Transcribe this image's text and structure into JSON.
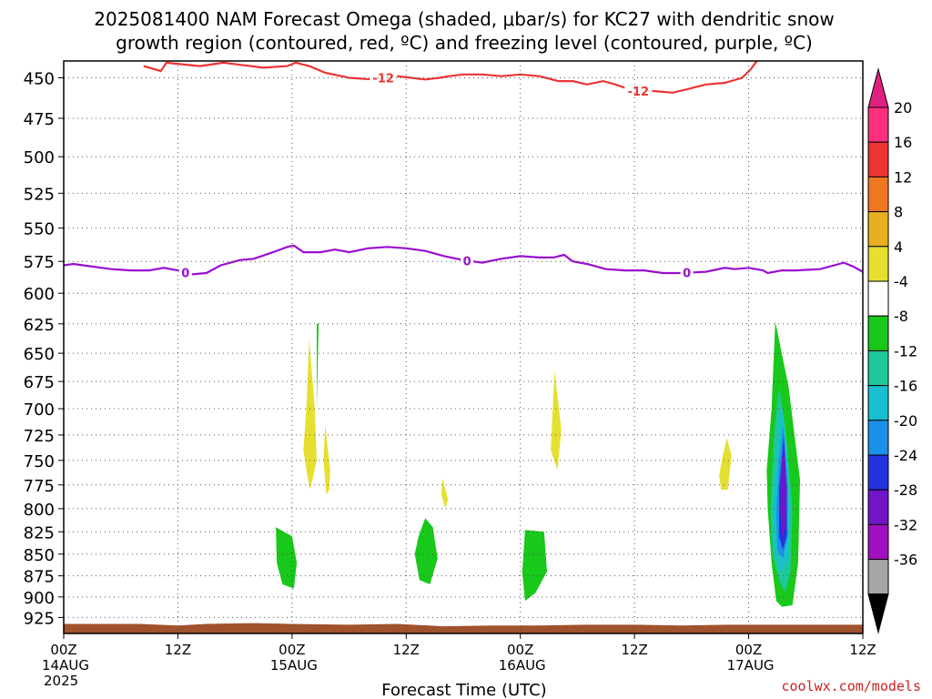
{
  "chart_data": {
    "type": "contour",
    "title_line1": "2025081400 NAM Forecast Omega (shaded, μbar/s) for KC27 with dendritic snow",
    "title_line2": "growth region (contoured, red, ºC) and freezing level (contoured, purple, ºC)",
    "xlabel": "Forecast Time (UTC)",
    "watermark": "coolwx.com/models",
    "x_ticks": [
      {
        "hour": 0,
        "line1": "00Z",
        "line2": "14AUG",
        "line3": "2025"
      },
      {
        "hour": 12,
        "line1": "12Z",
        "line2": "",
        "line3": ""
      },
      {
        "hour": 24,
        "line1": "00Z",
        "line2": "15AUG",
        "line3": ""
      },
      {
        "hour": 36,
        "line1": "12Z",
        "line2": "",
        "line3": ""
      },
      {
        "hour": 48,
        "line1": "00Z",
        "line2": "16AUG",
        "line3": ""
      },
      {
        "hour": 60,
        "line1": "12Z",
        "line2": "",
        "line3": ""
      },
      {
        "hour": 72,
        "line1": "00Z",
        "line2": "17AUG",
        "line3": ""
      },
      {
        "hour": 84,
        "line1": "12Z",
        "line2": "",
        "line3": ""
      }
    ],
    "xlim_hours": [
      0,
      84
    ],
    "y_levels_hPa": [
      450,
      475,
      500,
      525,
      550,
      575,
      600,
      625,
      650,
      675,
      700,
      725,
      750,
      775,
      800,
      825,
      850,
      875,
      900,
      925
    ],
    "ylim_hPa": [
      440,
      945
    ],
    "y_scale": "log-pressure",
    "grid": true,
    "colorbar": {
      "labels": [
        "20",
        "16",
        "12",
        "8",
        "4",
        "-4",
        "-8",
        "-12",
        "-16",
        "-20",
        "-24",
        "-28",
        "-32",
        "-36"
      ],
      "colors": [
        "#ff2f7f",
        "#ee3333",
        "#ee7722",
        "#e8b020",
        "#e5e030",
        "#ffffff",
        "#18c81a",
        "#1ec89a",
        "#18bfcf",
        "#1b91ea",
        "#2233dd",
        "#7016c8",
        "#a010c0",
        "#a6a6a6"
      ],
      "top_arrow_color": "#e0207e",
      "bottom_arrow_color": "#000000"
    },
    "dgz_contour": {
      "label": "-12",
      "color": "#ee3333",
      "points_hPa": [
        [
          8.4,
          443
        ],
        [
          9.0,
          444
        ],
        [
          10.2,
          446
        ],
        [
          10.8,
          441
        ],
        [
          14.3,
          443
        ],
        [
          16.8,
          441
        ],
        [
          21.0,
          444
        ],
        [
          23.5,
          443
        ],
        [
          24.4,
          441
        ],
        [
          25.8,
          443
        ],
        [
          27.5,
          447
        ],
        [
          30.0,
          450
        ],
        [
          32.5,
          451
        ],
        [
          35.0,
          449
        ],
        [
          36.5,
          450
        ],
        [
          38.0,
          451
        ],
        [
          39.5,
          450
        ],
        [
          40.5,
          449
        ],
        [
          42.0,
          448
        ],
        [
          44.0,
          448
        ],
        [
          46.0,
          449
        ],
        [
          48.0,
          448
        ],
        [
          50.0,
          449
        ],
        [
          52.0,
          452
        ],
        [
          53.5,
          452
        ],
        [
          55.0,
          454
        ],
        [
          56.7,
          452
        ],
        [
          58.0,
          454
        ],
        [
          60.0,
          458
        ],
        [
          62.0,
          458
        ],
        [
          64.0,
          459
        ],
        [
          65.5,
          457
        ],
        [
          67.5,
          454
        ],
        [
          69.5,
          453
        ],
        [
          71.3,
          450
        ],
        [
          72.2,
          445
        ],
        [
          73.0,
          439
        ]
      ],
      "label_positions_hours": [
        33.6,
        60.4
      ]
    },
    "freezing_contour": {
      "label": "0",
      "color": "#9a0ed0",
      "points_hPa": [
        [
          0,
          578
        ],
        [
          1.0,
          577
        ],
        [
          3.0,
          579
        ],
        [
          5.0,
          581
        ],
        [
          7.0,
          582
        ],
        [
          9.0,
          582
        ],
        [
          10.5,
          580
        ],
        [
          12.0,
          582
        ],
        [
          13.5,
          585
        ],
        [
          15.0,
          584
        ],
        [
          16.5,
          578
        ],
        [
          18.5,
          574
        ],
        [
          20.0,
          573
        ],
        [
          22.0,
          568
        ],
        [
          23.5,
          564
        ],
        [
          24.2,
          563
        ],
        [
          25.2,
          568
        ],
        [
          27.0,
          568
        ],
        [
          28.5,
          566
        ],
        [
          30.0,
          568
        ],
        [
          32.0,
          565
        ],
        [
          34.0,
          564
        ],
        [
          36.0,
          565
        ],
        [
          38.0,
          567
        ],
        [
          40.0,
          571
        ],
        [
          42.0,
          574
        ],
        [
          44.0,
          576
        ],
        [
          46.0,
          573
        ],
        [
          48.0,
          571
        ],
        [
          50.0,
          572
        ],
        [
          51.5,
          572
        ],
        [
          52.6,
          570
        ],
        [
          53.5,
          575
        ],
        [
          55.0,
          577
        ],
        [
          57.0,
          581
        ],
        [
          59.0,
          582
        ],
        [
          61.0,
          582
        ],
        [
          63.0,
          584
        ],
        [
          65.0,
          584
        ],
        [
          67.5,
          583
        ],
        [
          69.5,
          580
        ],
        [
          70.5,
          581
        ],
        [
          72.0,
          580
        ],
        [
          73.5,
          582
        ],
        [
          74.0,
          584
        ],
        [
          75.5,
          582
        ],
        [
          77.0,
          582
        ],
        [
          79.5,
          581
        ],
        [
          81.0,
          578
        ],
        [
          82.0,
          576
        ],
        [
          83.0,
          579
        ],
        [
          84.0,
          583
        ]
      ],
      "label_positions_hours": [
        12.8,
        42.4,
        65.5
      ]
    },
    "omega_regions": [
      {
        "value": "4",
        "color": "#e5e030",
        "hours": [
          25.8,
          26.4,
          26.6,
          25.9,
          25.6,
          25.2,
          25.5,
          25.8
        ],
        "hPa": [
          638,
          700,
          750,
          780,
          765,
          740,
          700,
          638
        ]
      },
      {
        "value": "4",
        "color": "#e5e030",
        "hours": [
          27.5,
          28.0,
          27.9,
          27.6,
          27.3,
          27.5
        ],
        "hPa": [
          715,
          760,
          780,
          785,
          750,
          715
        ]
      },
      {
        "value": "-8",
        "color": "#18c81a",
        "hours": [
          26.6,
          26.8,
          26.6,
          26.6
        ],
        "hPa": [
          625,
          625,
          700,
          625
        ]
      },
      {
        "value": "4",
        "color": "#e5e030",
        "hours": [
          39.8,
          40.4,
          40.1,
          39.7,
          39.8
        ],
        "hPa": [
          768,
          790,
          800,
          785,
          768
        ]
      },
      {
        "value": "4",
        "color": "#e5e030",
        "hours": [
          51.6,
          52.3,
          51.9,
          51.2,
          51.4,
          51.6
        ],
        "hPa": [
          665,
          720,
          760,
          740,
          700,
          665
        ]
      },
      {
        "value": "4",
        "color": "#e5e030",
        "hours": [
          69.7,
          70.2,
          69.8,
          69.1,
          68.9,
          69.3,
          69.7
        ],
        "hPa": [
          728,
          745,
          780,
          780,
          765,
          745,
          728
        ]
      },
      {
        "value": "-8",
        "color": "#18c81a",
        "hours": [
          22.3,
          24.0,
          24.5,
          24.2,
          23.0,
          22.4,
          22.3
        ],
        "hPa": [
          820,
          830,
          860,
          890,
          885,
          860,
          820
        ]
      },
      {
        "value": "-8",
        "color": "#18c81a",
        "hours": [
          38.0,
          38.8,
          39.3,
          38.5,
          37.4,
          36.9,
          37.3,
          38.0
        ],
        "hPa": [
          810,
          820,
          855,
          885,
          880,
          850,
          830,
          810
        ]
      },
      {
        "value": "-8",
        "color": "#18c81a",
        "hours": [
          48.5,
          50.5,
          50.8,
          49.6,
          48.5,
          48.2,
          48.5
        ],
        "hPa": [
          823,
          825,
          870,
          895,
          905,
          870,
          823
        ]
      },
      {
        "value": "-8",
        "color": "#18c81a",
        "hours": [
          74.8,
          76.2,
          77.4,
          77.2,
          76.6,
          75.5,
          74.9,
          74.4,
          74.0,
          73.9,
          74.4,
          74.8
        ],
        "hPa": [
          623,
          680,
          770,
          860,
          910,
          912,
          905,
          860,
          800,
          760,
          700,
          623
        ]
      },
      {
        "value": "-12",
        "color": "#1ec89a",
        "hours": [
          75.2,
          75.9,
          76.6,
          76.4,
          75.8,
          75.2,
          74.5,
          74.3,
          74.7,
          75.2
        ],
        "hPa": [
          680,
          720,
          800,
          870,
          895,
          880,
          850,
          800,
          720,
          680
        ]
      },
      {
        "value": "-16",
        "color": "#18bfcf",
        "hours": [
          75.4,
          76.0,
          76.3,
          76.0,
          75.4,
          74.8,
          74.6,
          75.0,
          75.4
        ],
        "hPa": [
          695,
          740,
          810,
          860,
          870,
          850,
          800,
          740,
          695
        ]
      },
      {
        "value": "-20",
        "color": "#1b91ea",
        "hours": [
          75.6,
          76.1,
          76.1,
          75.6,
          75.0,
          74.9,
          75.2,
          75.6
        ],
        "hPa": [
          715,
          770,
          830,
          855,
          845,
          800,
          750,
          715
        ]
      },
      {
        "value": "-24",
        "color": "#2233dd",
        "hours": [
          75.7,
          76.0,
          76.0,
          75.6,
          75.2,
          75.2,
          75.7
        ],
        "hPa": [
          725,
          780,
          830,
          845,
          830,
          780,
          725
        ]
      },
      {
        "value": "-28",
        "color": "#7016c8",
        "hours": [
          75.7,
          76.0,
          75.9,
          75.5,
          75.3,
          75.4,
          75.7
        ],
        "hPa": [
          730,
          780,
          820,
          830,
          800,
          760,
          730
        ]
      }
    ],
    "ground": {
      "color": "#a0522d",
      "top_hPa": [
        [
          0,
          933
        ],
        [
          8,
          933
        ],
        [
          12,
          935
        ],
        [
          15,
          933
        ],
        [
          20,
          932
        ],
        [
          24,
          933
        ],
        [
          30,
          934
        ],
        [
          35,
          933
        ],
        [
          40,
          936
        ],
        [
          45,
          935
        ],
        [
          50,
          935
        ],
        [
          55,
          934
        ],
        [
          60,
          934
        ],
        [
          65,
          935
        ],
        [
          70,
          934
        ],
        [
          75,
          934
        ],
        [
          80,
          934
        ],
        [
          84,
          934
        ]
      ],
      "bottom_hPa": 940
    }
  }
}
